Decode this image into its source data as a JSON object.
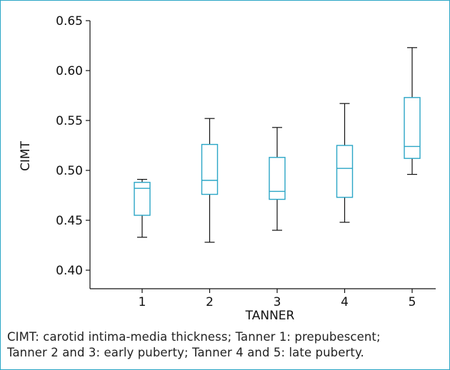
{
  "chart_data": {
    "type": "box",
    "xlabel": "TANNER",
    "ylabel": "CIMT",
    "ylim": [
      0.39,
      0.65
    ],
    "yticks": [
      0.4,
      0.45,
      0.5,
      0.55,
      0.6,
      0.65
    ],
    "ytick_labels": [
      "0.40",
      "0.45",
      "0.50",
      "0.55",
      "0.60",
      "0.65"
    ],
    "categories": [
      "1",
      "2",
      "3",
      "4",
      "5"
    ],
    "boxes": [
      {
        "category": "1",
        "min": 0.433,
        "q1": 0.455,
        "median": 0.482,
        "q3": 0.488,
        "max": 0.491
      },
      {
        "category": "2",
        "min": 0.428,
        "q1": 0.476,
        "median": 0.49,
        "q3": 0.526,
        "max": 0.552
      },
      {
        "category": "3",
        "min": 0.44,
        "q1": 0.471,
        "median": 0.479,
        "q3": 0.513,
        "max": 0.543
      },
      {
        "category": "4",
        "min": 0.448,
        "q1": 0.473,
        "median": 0.502,
        "q3": 0.525,
        "max": 0.567
      },
      {
        "category": "5",
        "min": 0.496,
        "q1": 0.512,
        "median": 0.524,
        "q3": 0.573,
        "max": 0.623
      }
    ],
    "colors": {
      "box": "#2aa6c6",
      "whisker": "#111111",
      "axis": "#111111"
    }
  },
  "caption": {
    "line1": "CIMT: carotid intima-media thickness; Tanner 1: prepubescent;",
    "line2": "Tanner 2 and 3: early puberty; Tanner 4 and 5: late puberty."
  }
}
